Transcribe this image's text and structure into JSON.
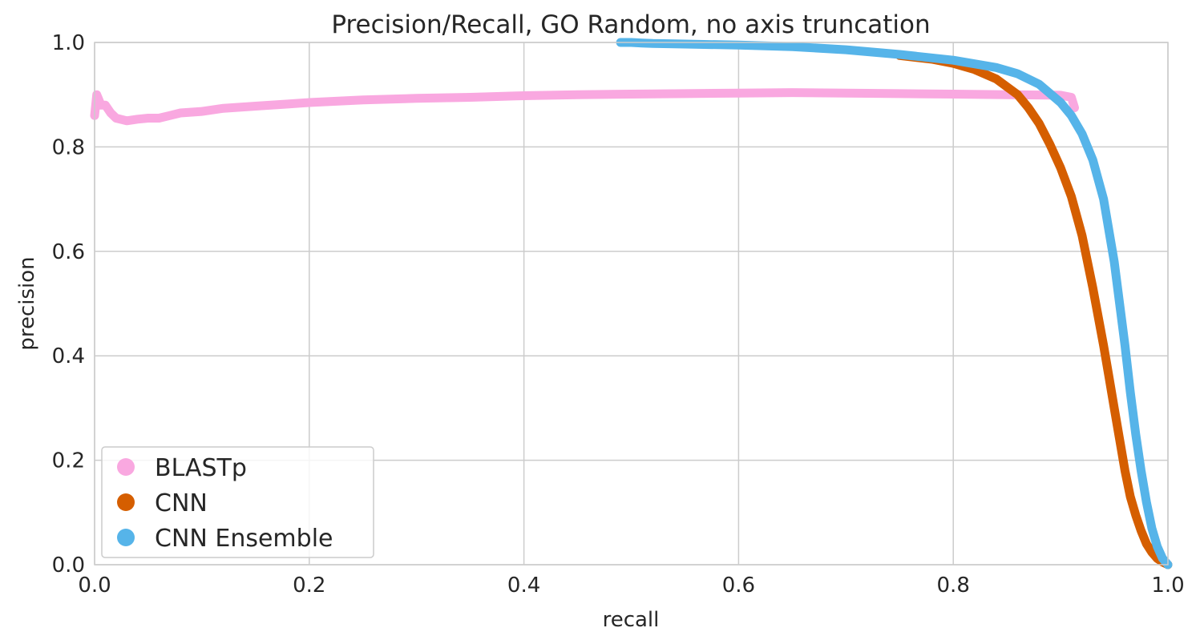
{
  "chart_data": {
    "type": "scatter",
    "title": "Precision/Recall, GO Random, no axis truncation",
    "xlabel": "recall",
    "ylabel": "precision",
    "xlim": [
      0.0,
      1.0
    ],
    "ylim": [
      0.0,
      1.0
    ],
    "xticks": [
      "0.0",
      "0.2",
      "0.4",
      "0.6",
      "0.8",
      "1.0"
    ],
    "yticks": [
      "0.0",
      "0.2",
      "0.4",
      "0.6",
      "0.8",
      "1.0"
    ],
    "grid": true,
    "legend_position": "lower-left",
    "series": [
      {
        "name": "BLASTp",
        "color": "#f9a8e0",
        "x": [
          0.0,
          0.002,
          0.004,
          0.006,
          0.01,
          0.015,
          0.02,
          0.03,
          0.04,
          0.05,
          0.06,
          0.07,
          0.08,
          0.1,
          0.12,
          0.15,
          0.18,
          0.2,
          0.25,
          0.3,
          0.35,
          0.4,
          0.45,
          0.5,
          0.55,
          0.6,
          0.65,
          0.7,
          0.75,
          0.8,
          0.85,
          0.9,
          0.91,
          0.913
        ],
        "y": [
          0.86,
          0.9,
          0.89,
          0.88,
          0.88,
          0.865,
          0.855,
          0.85,
          0.853,
          0.855,
          0.855,
          0.86,
          0.865,
          0.868,
          0.874,
          0.878,
          0.882,
          0.885,
          0.89,
          0.893,
          0.895,
          0.898,
          0.9,
          0.901,
          0.902,
          0.903,
          0.904,
          0.903,
          0.902,
          0.901,
          0.9,
          0.899,
          0.895,
          0.875
        ]
      },
      {
        "name": "CNN",
        "color": "#d55e00",
        "x": [
          0.75,
          0.78,
          0.8,
          0.82,
          0.84,
          0.86,
          0.87,
          0.88,
          0.89,
          0.9,
          0.91,
          0.92,
          0.93,
          0.94,
          0.945,
          0.95,
          0.955,
          0.96,
          0.965,
          0.97,
          0.975,
          0.98,
          0.985,
          0.99,
          0.995,
          1.0
        ],
        "y": [
          0.975,
          0.968,
          0.96,
          0.948,
          0.93,
          0.9,
          0.875,
          0.845,
          0.805,
          0.76,
          0.705,
          0.63,
          0.53,
          0.42,
          0.36,
          0.3,
          0.24,
          0.18,
          0.13,
          0.095,
          0.065,
          0.04,
          0.024,
          0.012,
          0.005,
          0.0
        ]
      },
      {
        "name": "CNN Ensemble",
        "color": "#56b4e9",
        "x": [
          0.49,
          0.5,
          0.51,
          0.52,
          0.55,
          0.6,
          0.65,
          0.7,
          0.75,
          0.8,
          0.84,
          0.86,
          0.88,
          0.9,
          0.91,
          0.92,
          0.93,
          0.94,
          0.95,
          0.955,
          0.96,
          0.965,
          0.97,
          0.975,
          0.98,
          0.985,
          0.99,
          0.995,
          1.0
        ],
        "y": [
          1.0,
          1.0,
          0.999,
          0.998,
          0.997,
          0.995,
          0.992,
          0.986,
          0.977,
          0.966,
          0.952,
          0.94,
          0.92,
          0.885,
          0.86,
          0.825,
          0.775,
          0.7,
          0.58,
          0.5,
          0.42,
          0.33,
          0.25,
          0.18,
          0.12,
          0.07,
          0.035,
          0.012,
          0.0
        ]
      }
    ]
  }
}
